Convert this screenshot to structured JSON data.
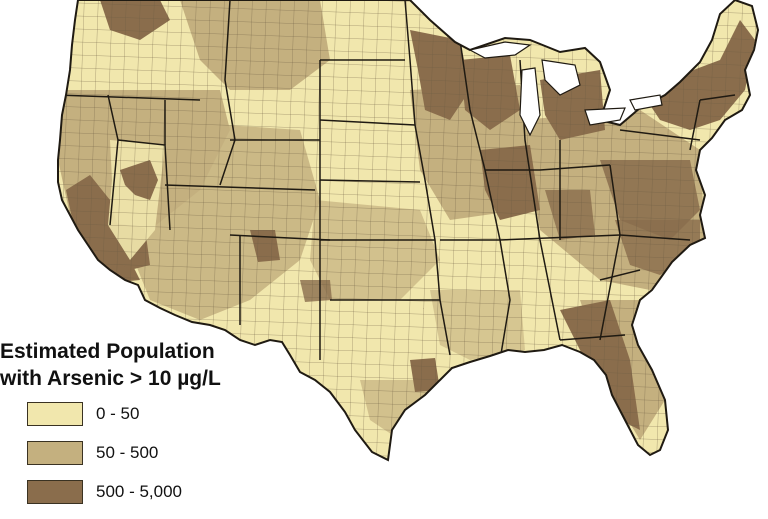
{
  "map": {
    "legend": {
      "title_line1": "Estimated Population",
      "title_line2": "with Arsenic > 10 µg/L",
      "items": [
        {
          "label": "0 - 50",
          "color": "#f1e7ad"
        },
        {
          "label": "50 - 500",
          "color": "#c4b07f"
        },
        {
          "label": "500 - 5,000",
          "color": "#8a6d4c"
        }
      ]
    },
    "colors": {
      "state_border": "#1f1a12",
      "county_border": "#6b5b42",
      "background": "#ffffff"
    }
  }
}
